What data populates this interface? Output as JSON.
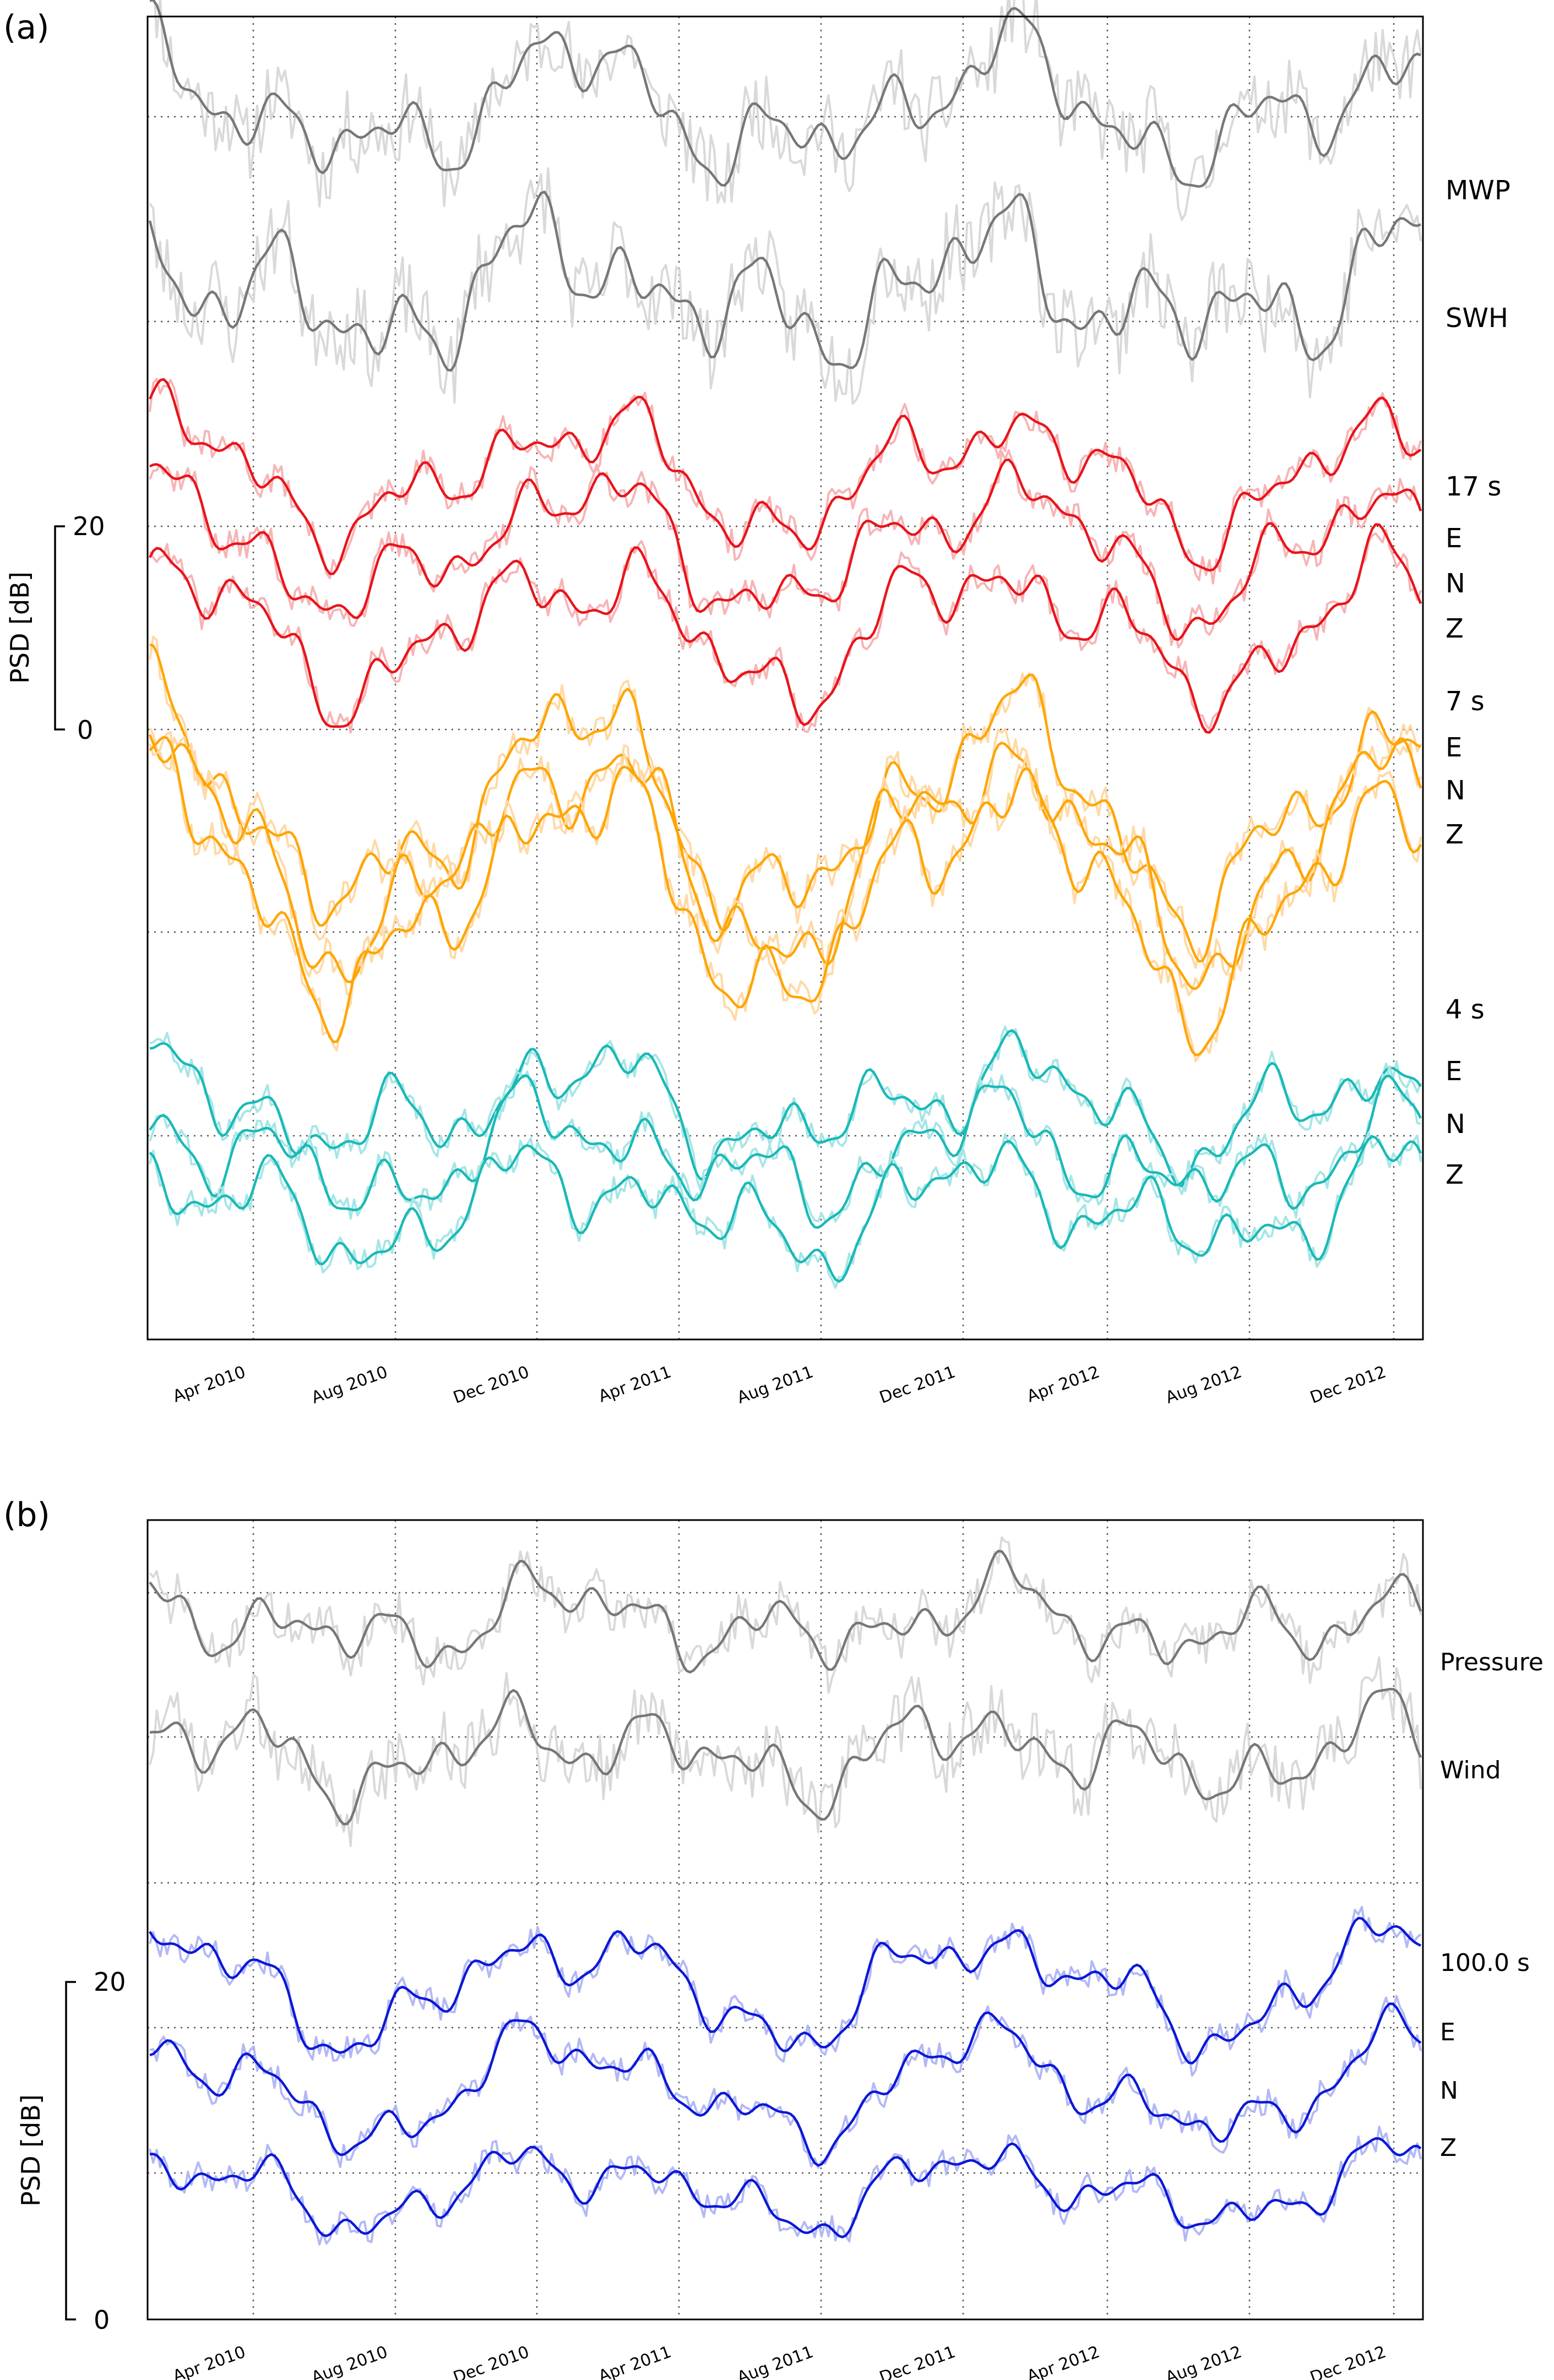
{
  "colors": {
    "gray_smooth": "#777777",
    "gray_raw": "#d9d9d9",
    "red_smooth": "#e8141b",
    "red_raw": "#f7b4b6",
    "orange_smooth": "#ffa500",
    "orange_raw": "#ffd9a6",
    "cyan_smooth": "#1ab9b7",
    "cyan_raw": "#a6e6e5",
    "blue_smooth": "#0b18d6",
    "blue_raw": "#b3b8f5"
  },
  "chart_data": [
    {
      "type": "line",
      "panel_label": "(a)",
      "ylabel": "PSD [dB]",
      "scale_bar": {
        "top": "20",
        "bottom": "0"
      },
      "x_ticks": [
        "Apr 2010",
        "Aug 2010",
        "Dec 2010",
        "Apr 2011",
        "Aug 2011",
        "Dec 2011",
        "Apr 2012",
        "Aug 2012",
        "Dec 2012"
      ],
      "x_range": [
        "2010-01-15",
        "2013-01-20"
      ],
      "y_range": [
        -10,
        55
      ],
      "grid": true,
      "groups": [
        {
          "label": "MWP",
          "series": [
            {
              "name": "MWP",
              "color": "gray",
              "base": 50.5,
              "seed": 11,
              "amp": 1.2,
              "swing": 0.55,
              "noise": 1.9
            }
          ]
        },
        {
          "label": "SWH",
          "series": [
            {
              "name": "SWH",
              "color": "gray",
              "base": 41.5,
              "seed": 23,
              "amp": 1.5,
              "swing": 0.45,
              "noise": 2.0
            }
          ]
        },
        {
          "label": "17 s",
          "components": [
            "E",
            "N",
            "Z"
          ],
          "series": [
            {
              "name": "E",
              "color": "red",
              "base": 32.5,
              "seed": 31,
              "amp": 1.0,
              "swing": 0.6,
              "noise": 0.7
            },
            {
              "name": "N",
              "color": "red",
              "base": 29.0,
              "seed": 37,
              "amp": 1.0,
              "swing": 0.65,
              "noise": 0.7
            },
            {
              "name": "Z",
              "color": "red",
              "base": 25.0,
              "seed": 41,
              "amp": 1.1,
              "swing": 0.65,
              "noise": 0.7
            }
          ]
        },
        {
          "label": "7 s",
          "components": [
            "E",
            "N",
            "Z"
          ],
          "series": [
            {
              "name": "E",
              "color": "orange",
              "base": 16.0,
              "seed": 43,
              "amp": 1.3,
              "swing": 1.1,
              "noise": 0.8
            },
            {
              "name": "N",
              "color": "orange",
              "base": 14.0,
              "seed": 47,
              "amp": 1.3,
              "swing": 1.1,
              "noise": 0.8
            },
            {
              "name": "Z",
              "color": "orange",
              "base": 12.0,
              "seed": 53,
              "amp": 1.4,
              "swing": 1.15,
              "noise": 0.8
            }
          ]
        },
        {
          "label": "4 s",
          "components": [
            "E",
            "N",
            "Z"
          ],
          "series": [
            {
              "name": "E",
              "color": "cyan",
              "base": 1.5,
              "seed": 59,
              "amp": 1.1,
              "swing": 0.4,
              "noise": 0.6
            },
            {
              "name": "N",
              "color": "cyan",
              "base": -1.0,
              "seed": 61,
              "amp": 1.1,
              "swing": 0.4,
              "noise": 0.6
            },
            {
              "name": "Z",
              "color": "cyan",
              "base": -3.5,
              "seed": 67,
              "amp": 1.1,
              "swing": 0.4,
              "noise": 0.6
            }
          ]
        }
      ]
    },
    {
      "type": "line",
      "panel_label": "(b)",
      "ylabel": "PSD [dB]",
      "scale_bar": {
        "top": "20",
        "bottom": "0"
      },
      "x_ticks": [
        "Apr 2010",
        "Aug 2010",
        "Dec 2010",
        "Apr 2011",
        "Aug 2011",
        "Dec 2011",
        "Apr 2012",
        "Aug 2012",
        "Dec 2012"
      ],
      "x_range": [
        "2010-01-15",
        "2013-01-20"
      ],
      "y_range": [
        -2,
        53
      ],
      "grid": true,
      "groups": [
        {
          "label": "Pressure",
          "series": [
            {
              "name": "Pressure",
              "color": "gray",
              "base": 46.0,
              "seed": 71,
              "amp": 1.3,
              "swing": 0.35,
              "noise": 1.6
            }
          ]
        },
        {
          "label": "Wind",
          "series": [
            {
              "name": "Wind",
              "color": "gray",
              "base": 37.0,
              "seed": 73,
              "amp": 1.4,
              "swing": 0.35,
              "noise": 2.4
            }
          ]
        },
        {
          "label": "100.0 s",
          "components": [
            "E",
            "N",
            "Z"
          ],
          "series": [
            {
              "name": "E",
              "color": "blue",
              "base": 21.0,
              "seed": 79,
              "amp": 1.2,
              "swing": 0.75,
              "noise": 0.9
            },
            {
              "name": "N",
              "color": "blue",
              "base": 14.0,
              "seed": 83,
              "amp": 1.1,
              "swing": 0.75,
              "noise": 0.9
            },
            {
              "name": "Z",
              "color": "blue",
              "base": 7.0,
              "seed": 89,
              "amp": 1.0,
              "swing": 0.45,
              "noise": 0.9
            }
          ]
        }
      ]
    }
  ]
}
